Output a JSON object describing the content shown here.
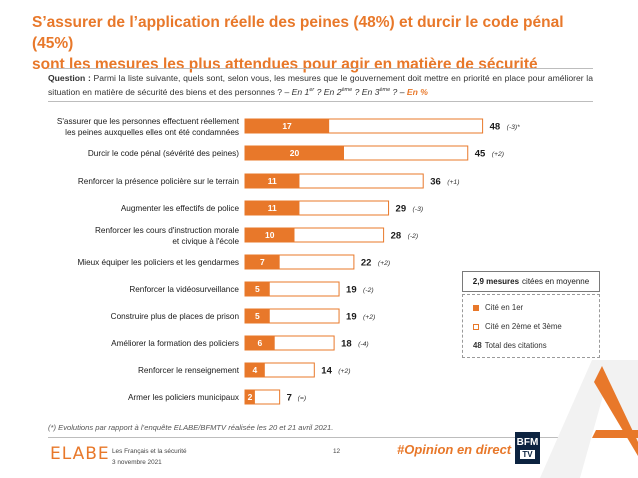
{
  "title": {
    "line1": "S’assurer de l’application réelle des peines (48%) et durcir le code pénal (45%)",
    "line2": "sont les mesures les plus attendues pour agir en matière de sécurité"
  },
  "question": {
    "label": "Question :",
    "text": "Parmi la liste suivante, quels sont, selon vous, les mesures que le gouvernement doit mettre en priorité en place pour améliorer la situation en matière de sécurité des biens et des personnes ?",
    "dash": "–",
    "opt1_pre": "En 1",
    "opt1_sup": "er",
    "opt2_pre": "? En 2",
    "opt2_sup": "ème",
    "opt3_pre": "? En 3",
    "opt3_sup": "ème",
    "opt_end": "? –",
    "unit": "En %"
  },
  "chart_data": {
    "type": "bar",
    "orientation": "horizontal",
    "xlim": [
      0,
      50
    ],
    "series": [
      {
        "name": "Cité en 1er",
        "values": [
          17,
          20,
          11,
          11,
          10,
          7,
          5,
          5,
          6,
          4,
          2
        ]
      },
      {
        "name": "Cité en 2ème et 3ème",
        "values": [
          31,
          25,
          25,
          18,
          18,
          15,
          14,
          14,
          12,
          10,
          5
        ]
      }
    ],
    "categories": [
      {
        "label": "S'assurer que les personnes effectuent réellement",
        "label2": "les peines auxquelles elles ont été condamnées",
        "suffix": "",
        "first": 17,
        "total": 48,
        "evo": "(-3)*"
      },
      {
        "label": "Durcir le code pénal",
        "label2": "",
        "suffix": " (sévérité des peines)",
        "first": 20,
        "total": 45,
        "evo": "(+2)"
      },
      {
        "label": "Renforcer la présence policière sur le terrain",
        "label2": "",
        "suffix": "",
        "first": 11,
        "total": 36,
        "evo": "(+1)"
      },
      {
        "label": "Augmenter les effectifs de police",
        "label2": "",
        "suffix": "",
        "first": 11,
        "total": 29,
        "evo": "(-3)"
      },
      {
        "label": "Renforcer les cours d'instruction morale",
        "label2": "et civique à l'école",
        "suffix": "",
        "first": 10,
        "total": 28,
        "evo": "(-2)"
      },
      {
        "label": "Mieux équiper les policiers et les gendarmes",
        "label2": "",
        "suffix": "",
        "first": 7,
        "total": 22,
        "evo": "(+2)"
      },
      {
        "label": "Renforcer la vidéosurveillance",
        "label2": "",
        "suffix": "",
        "first": 5,
        "total": 19,
        "evo": "(-2)"
      },
      {
        "label": "Construire plus de places de prison",
        "label2": "",
        "suffix": "",
        "first": 5,
        "total": 19,
        "evo": "(+2)"
      },
      {
        "label": "Améliorer la formation des policiers",
        "label2": "",
        "suffix": "",
        "first": 6,
        "total": 18,
        "evo": "(-4)"
      },
      {
        "label": "Renforcer le renseignement",
        "label2": "",
        "suffix": "",
        "first": 4,
        "total": 14,
        "evo": "(+2)"
      },
      {
        "label": "Armer les policiers municipaux",
        "label2": "",
        "suffix": "",
        "first": 2,
        "total": 7,
        "evo": "(=)"
      }
    ],
    "colors": {
      "first": "#e8782a",
      "border": "#e8782a",
      "evo_negative": "#c0392b"
    }
  },
  "legend": {
    "mean_value": "2,9 mesures",
    "mean_text": "citées en moyenne",
    "first_label": "Cité en 1er",
    "second_label": "Cité en 2ème et 3ème",
    "total_value": "48",
    "total_label": "Total des citations"
  },
  "footnote": "(*) Evolutions par rapport à l’enquête ELABE/BFMTV réalisée les 20 et 21 avril 2021.",
  "footer": {
    "brand": "ELABE",
    "survey": "Les Français et la sécurité",
    "date": "3 novembre 2021",
    "page": "12",
    "hashtag": "#Opinion en direct",
    "bfm_top": "BFM",
    "bfm_bottom": "TV"
  }
}
